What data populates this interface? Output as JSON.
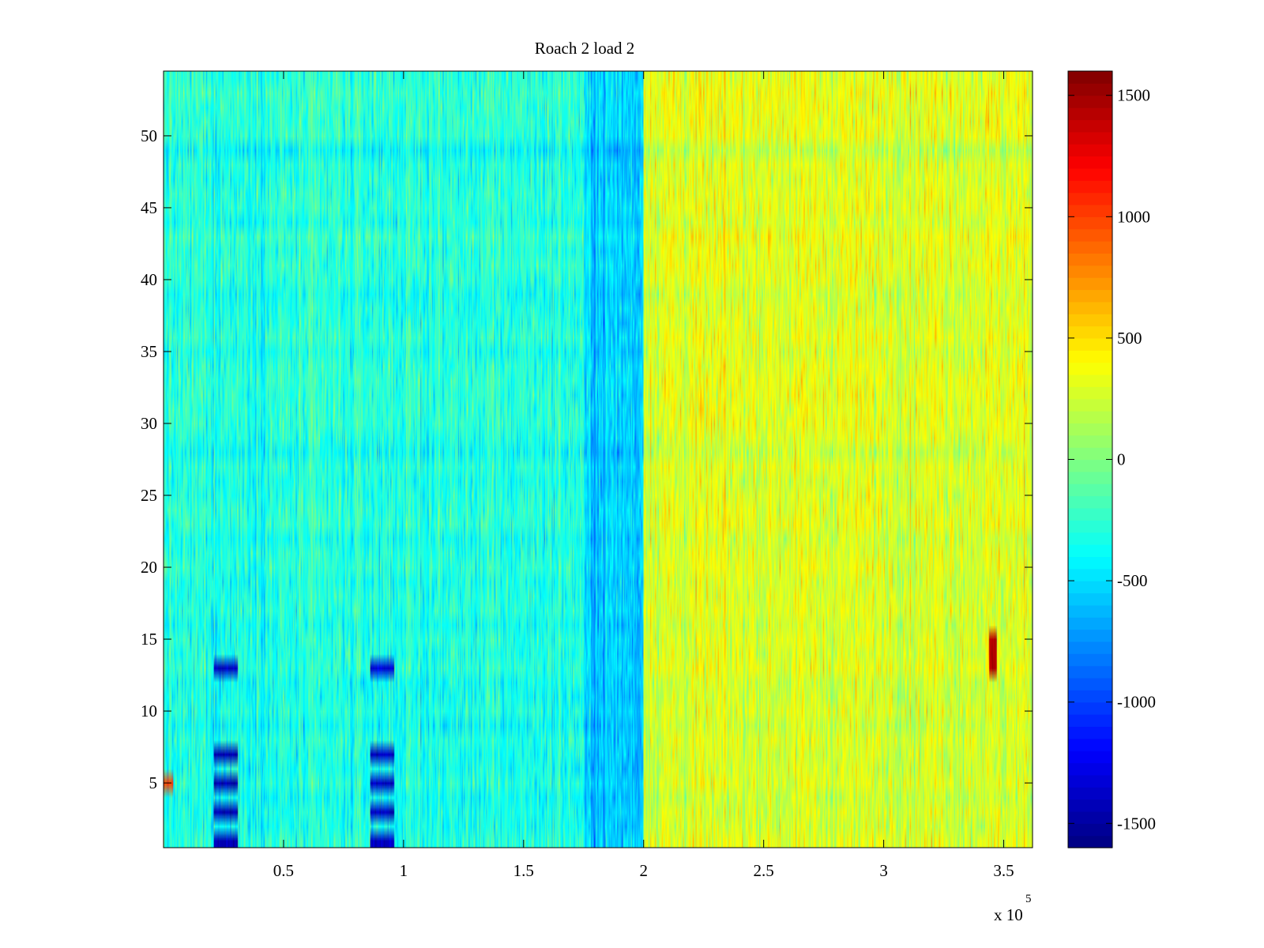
{
  "chart_data": {
    "type": "heatmap",
    "title": "Roach 2 load 2",
    "xlabel": "",
    "ylabel": "",
    "x_multiplier_label": "x 10",
    "x_multiplier_exponent": "5",
    "xlim": [
      0,
      362000
    ],
    "ylim": [
      0.5,
      54.5
    ],
    "x_ticks": [
      {
        "value": 50000,
        "label": "0.5"
      },
      {
        "value": 100000,
        "label": "1"
      },
      {
        "value": 150000,
        "label": "1.5"
      },
      {
        "value": 200000,
        "label": "2"
      },
      {
        "value": 250000,
        "label": "2.5"
      },
      {
        "value": 300000,
        "label": "3"
      },
      {
        "value": 350000,
        "label": "3.5"
      }
    ],
    "y_ticks": [
      {
        "value": 5,
        "label": "5"
      },
      {
        "value": 10,
        "label": "10"
      },
      {
        "value": 15,
        "label": "15"
      },
      {
        "value": 20,
        "label": "20"
      },
      {
        "value": 25,
        "label": "25"
      },
      {
        "value": 30,
        "label": "30"
      },
      {
        "value": 35,
        "label": "35"
      },
      {
        "value": 40,
        "label": "40"
      },
      {
        "value": 45,
        "label": "45"
      },
      {
        "value": 50,
        "label": "50"
      }
    ],
    "rows": 54,
    "colormap": "jet",
    "clim": [
      -1600,
      1600
    ],
    "colorbar_ticks": [
      {
        "value": 1500,
        "label": "1500"
      },
      {
        "value": 1000,
        "label": "1000"
      },
      {
        "value": 500,
        "label": "500"
      },
      {
        "value": 0,
        "label": "0"
      },
      {
        "value": -500,
        "label": "-500"
      },
      {
        "value": -1000,
        "label": "-1000"
      },
      {
        "value": -1500,
        "label": "-1500"
      }
    ],
    "regions": [
      {
        "x_range": [
          0,
          200000
        ],
        "typical_value": -300,
        "noise": 250
      },
      {
        "x_range": [
          175000,
          200000
        ],
        "typical_value": -550,
        "noise": 250
      },
      {
        "x_range": [
          200000,
          362000
        ],
        "typical_value": 300,
        "noise": 250
      }
    ],
    "blocks": [
      {
        "x_range": [
          21000,
          31000
        ],
        "rows": [
          1,
          3,
          5,
          7
        ],
        "value": -1450
      },
      {
        "x_range": [
          21000,
          31000
        ],
        "rows": [
          13
        ],
        "value": -1400
      },
      {
        "x_range": [
          86000,
          96000
        ],
        "rows": [
          1,
          3,
          5,
          7
        ],
        "value": -1400
      },
      {
        "x_range": [
          86000,
          96000
        ],
        "rows": [
          13
        ],
        "value": -1350
      },
      {
        "x_range": [
          344000,
          347000
        ],
        "rows": [
          13,
          14,
          15
        ],
        "value": 1400
      },
      {
        "x_range": [
          0,
          4000
        ],
        "rows": [
          5
        ],
        "value": 1000
      }
    ]
  }
}
